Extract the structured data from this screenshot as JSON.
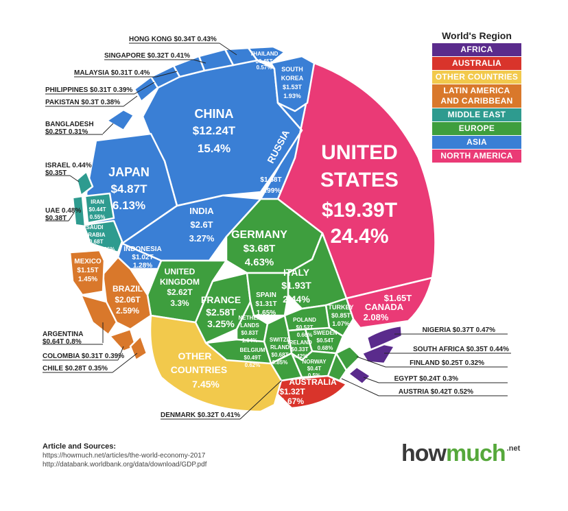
{
  "legend": {
    "title": "World's Region",
    "items": [
      {
        "label": "AFRICA",
        "color": "#5a2b8c"
      },
      {
        "label": "AUSTRALIA",
        "color": "#d9342b"
      },
      {
        "label": "OTHER COUNTRIES",
        "color": "#f2c94c"
      },
      {
        "label": "LATIN AMERICA AND CARIBBEAN",
        "color": "#d9782b"
      },
      {
        "label": "MIDDLE EAST",
        "color": "#2e9b8f"
      },
      {
        "label": "EUROPE",
        "color": "#3e9e3e"
      },
      {
        "label": "ASIA",
        "color": "#3a7fd5"
      },
      {
        "label": "NORTH AMERICA",
        "color": "#ea3a76"
      }
    ]
  },
  "chart_data": {
    "type": "voronoi-treemap",
    "title": "",
    "units": "GDP in trillions of USD and share of world economy",
    "cells": [
      {
        "name": "UNITED STATES",
        "gdp": "$19.39T",
        "share": "24.4%",
        "region": "North America"
      },
      {
        "name": "CHINA",
        "gdp": "$12.24T",
        "share": "15.4%",
        "region": "Asia"
      },
      {
        "name": "JAPAN",
        "gdp": "$4.87T",
        "share": "6.13%",
        "region": "Asia"
      },
      {
        "name": "GERMANY",
        "gdp": "$3.68T",
        "share": "4.63%",
        "region": "Europe"
      },
      {
        "name": "INDIA",
        "gdp": "$2.6T",
        "share": "3.27%",
        "region": "Asia"
      },
      {
        "name": "UNITED KINGDOM",
        "gdp": "$2.62T",
        "share": "3.3%",
        "region": "Europe"
      },
      {
        "name": "FRANCE",
        "gdp": "$2.58T",
        "share": "3.25%",
        "region": "Europe"
      },
      {
        "name": "BRAZIL",
        "gdp": "$2.06T",
        "share": "2.59%",
        "region": "Latin America"
      },
      {
        "name": "ITALY",
        "gdp": "$1.93T",
        "share": "2.44%",
        "region": "Europe"
      },
      {
        "name": "CANADA",
        "gdp": "$1.65T",
        "share": "2.08%",
        "region": "North America"
      },
      {
        "name": "RUSSIA",
        "gdp": "$1.58T",
        "share": "1.99%",
        "region": "Asia"
      },
      {
        "name": "SOUTH KOREA",
        "gdp": "$1.53T",
        "share": "1.93%",
        "region": "Asia"
      },
      {
        "name": "AUSTRALIA",
        "gdp": "$1.32T",
        "share": "1.67%",
        "region": "Australia"
      },
      {
        "name": "SPAIN",
        "gdp": "$1.31T",
        "share": "1.65%",
        "region": "Europe"
      },
      {
        "name": "MEXICO",
        "gdp": "$1.15T",
        "share": "1.45%",
        "region": "Latin America"
      },
      {
        "name": "INDONESIA",
        "gdp": "$1.02T",
        "share": "1.28%",
        "region": "Asia"
      },
      {
        "name": "TURKEY",
        "gdp": "$0.85T",
        "share": "1.07%",
        "region": "Europe"
      },
      {
        "name": "NETHERLANDS",
        "gdp": "$0.83T",
        "share": "1.04%",
        "region": "Europe"
      },
      {
        "name": "SAUDI ARABIA",
        "gdp": "$0.68T",
        "share": "0.86%",
        "region": "Middle East"
      },
      {
        "name": "SWITZERLAND",
        "gdp": "$0.68T",
        "share": "0.85%",
        "region": "Europe"
      },
      {
        "name": "ARGENTINA",
        "gdp": "$0.64T",
        "share": "0.8%",
        "region": "Latin America"
      },
      {
        "name": "SWEDEN",
        "gdp": "$0.54T",
        "share": "0.68%",
        "region": "Europe"
      },
      {
        "name": "POLAND",
        "gdp": "$0.52T",
        "share": "0.66%",
        "region": "Europe"
      },
      {
        "name": "BELGIUM",
        "gdp": "$0.49T",
        "share": "0.62%",
        "region": "Europe"
      },
      {
        "name": "IRAN",
        "gdp": "$0.44T",
        "share": "0.55%",
        "region": "Middle East"
      },
      {
        "name": "THAILAND",
        "gdp": "$0.45T",
        "share": "0.57%",
        "region": "Asia"
      },
      {
        "name": "AUSTRIA",
        "gdp": "$0.42T",
        "share": "0.52%",
        "region": "Europe"
      },
      {
        "name": "NORWAY",
        "gdp": "$0.4T",
        "share": "0.5%",
        "region": "Europe"
      },
      {
        "name": "UAE",
        "gdp": "$0.38T",
        "share": "0.48%",
        "region": "Middle East"
      },
      {
        "name": "NIGERIA",
        "gdp": "$0.37T",
        "share": "0.47%",
        "region": "Africa"
      },
      {
        "name": "ISRAEL",
        "gdp": "$0.35T",
        "share": "0.44%",
        "region": "Middle East"
      },
      {
        "name": "SOUTH AFRICA",
        "gdp": "$0.35T",
        "share": "0.44%",
        "region": "Africa"
      },
      {
        "name": "HONG KONG",
        "gdp": "$0.34T",
        "share": "0.43%",
        "region": "Asia"
      },
      {
        "name": "IRELAND",
        "gdp": "$0.33T",
        "share": "0.42%",
        "region": "Europe"
      },
      {
        "name": "DENMARK",
        "gdp": "$0.32T",
        "share": "0.41%",
        "region": "Europe"
      },
      {
        "name": "SINGAPORE",
        "gdp": "$0.32T",
        "share": "0.41%",
        "region": "Asia"
      },
      {
        "name": "MALAYSIA",
        "gdp": "$0.31T",
        "share": "0.4%",
        "region": "Asia"
      },
      {
        "name": "COLOMBIA",
        "gdp": "$0.31T",
        "share": "0.39%",
        "region": "Latin America"
      },
      {
        "name": "PHILIPPINES",
        "gdp": "$0.31T",
        "share": "0.39%",
        "region": "Asia"
      },
      {
        "name": "PAKISTAN",
        "gdp": "$0.3T",
        "share": "0.38%",
        "region": "Asia"
      },
      {
        "name": "CHILE",
        "gdp": "$0.28T",
        "share": "0.35%",
        "region": "Latin America"
      },
      {
        "name": "FINLAND",
        "gdp": "$0.25T",
        "share": "0.32%",
        "region": "Europe"
      },
      {
        "name": "BANGLADESH",
        "gdp": "$0.25T",
        "share": "0.31%",
        "region": "Asia"
      },
      {
        "name": "EGYPT",
        "gdp": "$0.24T",
        "share": "0.3%",
        "region": "Africa"
      },
      {
        "name": "OTHER COUNTRIES",
        "gdp": "",
        "share": "7.45%",
        "region": "Other Countries"
      }
    ]
  },
  "sources": {
    "title": "Article and Sources:",
    "line1": "https://howmuch.net/articles/the-world-economy-2017",
    "line2": "http://databank.worldbank.org/data/download/GDP.pdf"
  },
  "brand": {
    "part1": "how",
    "part2": "much",
    "part3": ".net"
  }
}
